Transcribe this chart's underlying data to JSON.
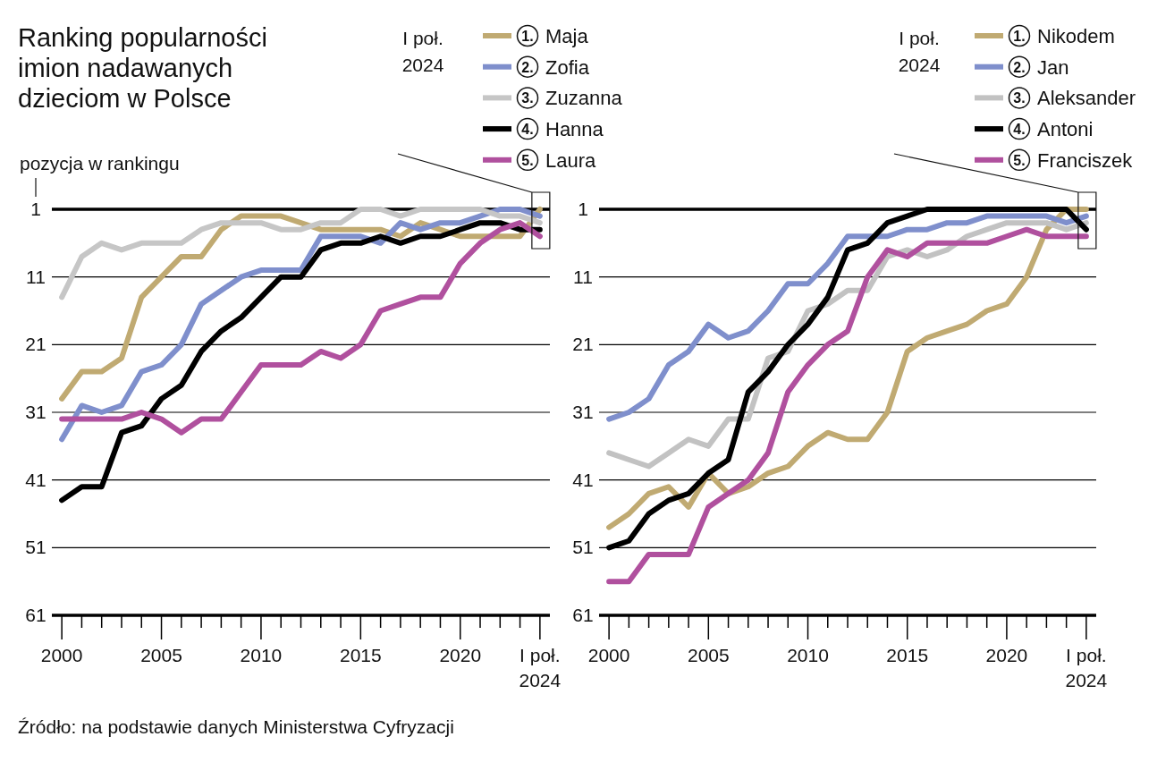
{
  "chart_data": [
    {
      "type": "line",
      "title": "Ranking popularności imion nadawanych dzieciom w Polsce",
      "ylabel": "pozycja w rankingu",
      "annotations": [
        "I poł. 2024",
        "Źródło: na podstawie danych Ministerstwa Cyfryzacji"
      ],
      "x": [
        2000,
        2001,
        2002,
        2003,
        2004,
        2005,
        2006,
        2007,
        2008,
        2009,
        2010,
        2011,
        2012,
        2013,
        2014,
        2015,
        2016,
        2017,
        2018,
        2019,
        2020,
        2021,
        2022,
        2023,
        2024
      ],
      "xlim": [
        1999.5,
        2024.5
      ],
      "xticks": [
        2000,
        {
          "value": 2001,
          "label": null
        },
        {
          "value": 2002,
          "label": null
        },
        {
          "value": 2003,
          "label": null
        },
        {
          "value": 2004,
          "label": null
        },
        2005,
        {
          "value": 2006,
          "label": null
        },
        {
          "value": 2007,
          "label": null
        },
        {
          "value": 2008,
          "label": null
        },
        {
          "value": 2009,
          "label": null
        },
        2010,
        {
          "value": 2011,
          "label": null
        },
        {
          "value": 2012,
          "label": null
        },
        {
          "value": 2013,
          "label": null
        },
        {
          "value": 2014,
          "label": null
        },
        2015,
        {
          "value": 2016,
          "label": null
        },
        {
          "value": 2017,
          "label": null
        },
        {
          "value": 2018,
          "label": null
        },
        {
          "value": 2019,
          "label": null
        },
        2020,
        {
          "value": 2021,
          "label": null
        },
        {
          "value": 2022,
          "label": null
        },
        {
          "value": 2023,
          "label": null
        },
        {
          "value": 2024,
          "label": "I poł. 2024"
        }
      ],
      "ylim": [
        61,
        1
      ],
      "yticks": [
        1,
        11,
        21,
        31,
        41,
        51,
        61
      ],
      "grid": "y",
      "legend": "top right",
      "line_style": "solid",
      "series": [
        {
          "name": "1. Maja",
          "color": "#c0aa72",
          "values": [
            29,
            25,
            25,
            23,
            14,
            11,
            8,
            8,
            4,
            2,
            2,
            2,
            3,
            4,
            4,
            4,
            4,
            5,
            3,
            4,
            5,
            5,
            5,
            5,
            1
          ]
        },
        {
          "name": "2. Zofia",
          "color": "#7f8fcc",
          "values": [
            35,
            30,
            31,
            30,
            25,
            24,
            21,
            15,
            13,
            11,
            10,
            10,
            10,
            5,
            5,
            5,
            6,
            3,
            4,
            3,
            3,
            2,
            1,
            1,
            2
          ]
        },
        {
          "name": "3. Zuzanna",
          "color": "#c6c6c6",
          "values": [
            14,
            8,
            6,
            7,
            6,
            6,
            6,
            4,
            3,
            3,
            3,
            4,
            4,
            3,
            3,
            1,
            1,
            2,
            1,
            1,
            1,
            1,
            2,
            2,
            3
          ]
        },
        {
          "name": "4. Hanna",
          "color": "#000000",
          "values": [
            44,
            42,
            42,
            34,
            33,
            29,
            27,
            22,
            19,
            17,
            14,
            11,
            11,
            7,
            6,
            6,
            5,
            6,
            5,
            5,
            4,
            3,
            3,
            4,
            4
          ]
        },
        {
          "name": "5. Laura",
          "color": "#b0509e",
          "values": [
            32,
            32,
            32,
            32,
            31,
            32,
            34,
            32,
            32,
            28,
            24,
            24,
            24,
            22,
            23,
            21,
            16,
            15,
            14,
            14,
            9,
            6,
            4,
            3,
            5
          ]
        }
      ]
    },
    {
      "type": "line",
      "annotations": [
        "I poł. 2024"
      ],
      "x": [
        2000,
        2001,
        2002,
        2003,
        2004,
        2005,
        2006,
        2007,
        2008,
        2009,
        2010,
        2011,
        2012,
        2013,
        2014,
        2015,
        2016,
        2017,
        2018,
        2019,
        2020,
        2021,
        2022,
        2023,
        2024
      ],
      "xlim": [
        1999.5,
        2024.5
      ],
      "xticks": [
        2000,
        {
          "value": 2001,
          "label": null
        },
        {
          "value": 2002,
          "label": null
        },
        {
          "value": 2003,
          "label": null
        },
        {
          "value": 2004,
          "label": null
        },
        2005,
        {
          "value": 2006,
          "label": null
        },
        {
          "value": 2007,
          "label": null
        },
        {
          "value": 2008,
          "label": null
        },
        {
          "value": 2009,
          "label": null
        },
        2010,
        {
          "value": 2011,
          "label": null
        },
        {
          "value": 2012,
          "label": null
        },
        {
          "value": 2013,
          "label": null
        },
        {
          "value": 2014,
          "label": null
        },
        2015,
        {
          "value": 2016,
          "label": null
        },
        {
          "value": 2017,
          "label": null
        },
        {
          "value": 2018,
          "label": null
        },
        {
          "value": 2019,
          "label": null
        },
        2020,
        {
          "value": 2021,
          "label": null
        },
        {
          "value": 2022,
          "label": null
        },
        {
          "value": 2023,
          "label": null
        },
        {
          "value": 2024,
          "label": "I poł. 2024"
        }
      ],
      "ylim": [
        61,
        1
      ],
      "yticks": [
        1,
        11,
        21,
        31,
        41,
        51,
        61
      ],
      "grid": "y",
      "legend": "top right",
      "line_style": "solid",
      "series": [
        {
          "name": "1. Nikodem",
          "color": "#c0aa72",
          "values": [
            48,
            46,
            43,
            42,
            45,
            40,
            43,
            42,
            40,
            39,
            36,
            34,
            35,
            35,
            31,
            22,
            20,
            19,
            18,
            16,
            15,
            11,
            4,
            1,
            1
          ]
        },
        {
          "name": "2. Jan",
          "color": "#7f8fcc",
          "values": [
            32,
            31,
            29,
            24,
            22,
            18,
            20,
            19,
            16,
            12,
            12,
            9,
            5,
            5,
            5,
            4,
            4,
            3,
            3,
            2,
            2,
            2,
            2,
            3,
            2
          ]
        },
        {
          "name": "3. Aleksander",
          "color": "#c2c2c2",
          "values": [
            37,
            38,
            39,
            37,
            35,
            36,
            32,
            32,
            23,
            22,
            16,
            15,
            13,
            13,
            8,
            7,
            8,
            7,
            5,
            4,
            3,
            3,
            3,
            4,
            3
          ]
        },
        {
          "name": "4. Antoni",
          "color": "#000000",
          "values": [
            51,
            50,
            46,
            44,
            43,
            40,
            38,
            28,
            25,
            21,
            18,
            14,
            7,
            6,
            3,
            2,
            1,
            1,
            1,
            1,
            1,
            1,
            1,
            1,
            4
          ]
        },
        {
          "name": "5. Franciszek",
          "color": "#b0509e",
          "values": [
            56,
            56,
            52,
            52,
            52,
            45,
            43,
            41,
            37,
            28,
            24,
            21,
            19,
            11,
            7,
            8,
            6,
            6,
            6,
            6,
            5,
            4,
            5,
            5,
            5
          ]
        }
      ]
    }
  ]
}
